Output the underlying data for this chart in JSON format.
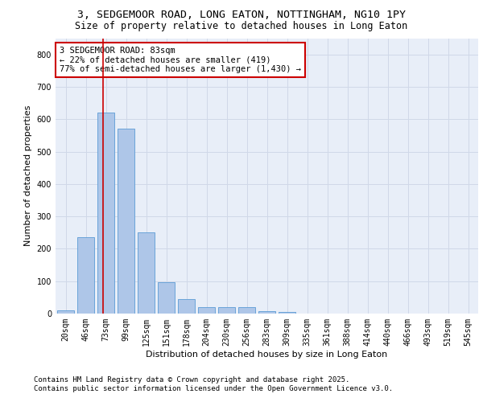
{
  "title_line1": "3, SEDGEMOOR ROAD, LONG EATON, NOTTINGHAM, NG10 1PY",
  "title_line2": "Size of property relative to detached houses in Long Eaton",
  "xlabel": "Distribution of detached houses by size in Long Eaton",
  "ylabel": "Number of detached properties",
  "bar_labels": [
    "20sqm",
    "46sqm",
    "73sqm",
    "99sqm",
    "125sqm",
    "151sqm",
    "178sqm",
    "204sqm",
    "230sqm",
    "256sqm",
    "283sqm",
    "309sqm",
    "335sqm",
    "361sqm",
    "388sqm",
    "414sqm",
    "440sqm",
    "466sqm",
    "493sqm",
    "519sqm",
    "545sqm"
  ],
  "bar_values": [
    10,
    235,
    620,
    570,
    250,
    98,
    45,
    20,
    20,
    20,
    8,
    5,
    0,
    0,
    0,
    0,
    0,
    0,
    0,
    0,
    0
  ],
  "bar_color": "#aec6e8",
  "bar_edge_color": "#5b9bd5",
  "red_line_x": 1.85,
  "annotation_text": "3 SEDGEMOOR ROAD: 83sqm\n← 22% of detached houses are smaller (419)\n77% of semi-detached houses are larger (1,430) →",
  "annotation_box_color": "#ffffff",
  "annotation_box_edge_color": "#cc0000",
  "red_line_color": "#cc0000",
  "ylim": [
    0,
    850
  ],
  "yticks": [
    0,
    100,
    200,
    300,
    400,
    500,
    600,
    700,
    800
  ],
  "grid_color": "#d0d8e8",
  "background_color": "#e8eef8",
  "footer_text": "Contains HM Land Registry data © Crown copyright and database right 2025.\nContains public sector information licensed under the Open Government Licence v3.0.",
  "title_fontsize": 9.5,
  "subtitle_fontsize": 8.5,
  "axis_label_fontsize": 8,
  "tick_fontsize": 7,
  "annotation_fontsize": 7.5,
  "footer_fontsize": 6.5
}
